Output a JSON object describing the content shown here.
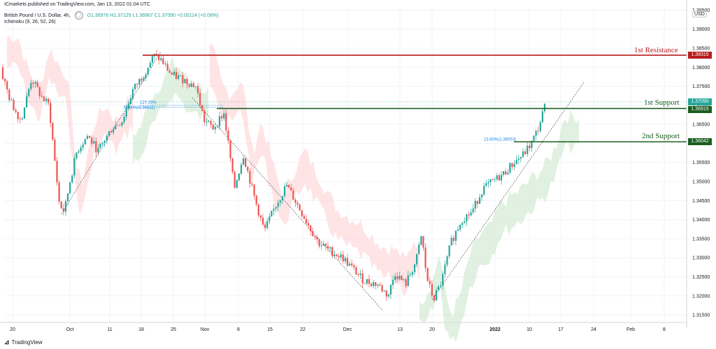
{
  "header": {
    "published": "ICmarkets published on TradingView.com, Jan 13, 2022 01:04 UTC",
    "symbol": "British Pound / U.S. Dollar, 4h,",
    "ohlc": "O1.36976  H1.37125  L1.36967  C1.37090  +0.00114 (+0.08%)",
    "indicator": "Ichimoku (9, 26, 52, 26)",
    "currency": "USD"
  },
  "price_labels": {
    "resistance_1": "1.38315",
    "current": "1.37090",
    "support_1": "1.36915",
    "support_2": "1.36042"
  },
  "annotations": {
    "resistance_1": "1st Resistance",
    "support_1": "1st Support",
    "support_2": "2nd Support",
    "fib_a": "78.60%(1.36911)",
    "fib_b": "127.20%",
    "fib_c": "23.60%(1.36053)"
  },
  "footer": {
    "logo_text": "TradingView"
  },
  "colors": {
    "resistance": "#b71c1c",
    "support": "#1b5e20",
    "up_candle": "#26a69a",
    "down_candle": "#ef5350",
    "current_price": "#26a69a",
    "fib": "#1e88e5"
  },
  "chart_data": {
    "type": "candlestick",
    "y_ticks": [
      "1.39000",
      "1.38500",
      "1.38000",
      "1.37500",
      "1.37000",
      "1.36500",
      "1.36000",
      "1.35500",
      "1.35000",
      "1.34500",
      "1.34000",
      "1.33500",
      "1.33000",
      "1.32500",
      "1.32000",
      "1.31500"
    ],
    "y_top_tick": "1.39500",
    "ylim": [
      1.313,
      1.3958
    ],
    "x_ticks": [
      "20",
      "Oct",
      "11",
      "18",
      "25",
      "Nov",
      "8",
      "15",
      "22",
      "Dec",
      "13",
      "20",
      "2022",
      "10",
      "17",
      "24",
      "Feb",
      "8"
    ],
    "levels": [
      {
        "name": "1st Resistance",
        "value": 1.38315
      },
      {
        "name": "1st Support",
        "value": 1.36915
      },
      {
        "name": "2nd Support",
        "value": 1.36042
      }
    ],
    "path": [
      [
        0,
        1.38
      ],
      [
        15,
        1.371
      ],
      [
        30,
        1.366
      ],
      [
        45,
        1.377
      ],
      [
        60,
        1.372
      ],
      [
        70,
        1.37
      ],
      [
        78,
        1.356
      ],
      [
        85,
        1.344
      ],
      [
        92,
        1.342
      ],
      [
        100,
        1.35
      ],
      [
        110,
        1.358
      ],
      [
        125,
        1.362
      ],
      [
        140,
        1.358
      ],
      [
        160,
        1.364
      ],
      [
        175,
        1.366
      ],
      [
        190,
        1.374
      ],
      [
        205,
        1.378
      ],
      [
        220,
        1.383
      ],
      [
        230,
        1.382
      ],
      [
        245,
        1.378
      ],
      [
        260,
        1.377
      ],
      [
        280,
        1.375
      ],
      [
        292,
        1.366
      ],
      [
        305,
        1.364
      ],
      [
        320,
        1.368
      ],
      [
        328,
        1.358
      ],
      [
        335,
        1.348
      ],
      [
        348,
        1.357
      ],
      [
        365,
        1.345
      ],
      [
        378,
        1.337
      ],
      [
        395,
        1.344
      ],
      [
        410,
        1.349
      ],
      [
        425,
        1.344
      ],
      [
        440,
        1.339
      ],
      [
        455,
        1.334
      ],
      [
        470,
        1.332
      ],
      [
        490,
        1.33
      ],
      [
        505,
        1.327
      ],
      [
        520,
        1.324
      ],
      [
        540,
        1.323
      ],
      [
        555,
        1.32
      ],
      [
        565,
        1.326
      ],
      [
        580,
        1.323
      ],
      [
        595,
        1.329
      ],
      [
        603,
        1.336
      ],
      [
        610,
        1.325
      ],
      [
        620,
        1.319
      ],
      [
        632,
        1.324
      ],
      [
        645,
        1.334
      ],
      [
        660,
        1.34
      ],
      [
        675,
        1.342
      ],
      [
        690,
        1.348
      ],
      [
        705,
        1.35
      ],
      [
        720,
        1.352
      ],
      [
        735,
        1.355
      ],
      [
        748,
        1.357
      ],
      [
        760,
        1.36
      ],
      [
        770,
        1.364
      ],
      [
        778,
        1.369
      ],
      [
        782,
        1.371
      ]
    ]
  }
}
